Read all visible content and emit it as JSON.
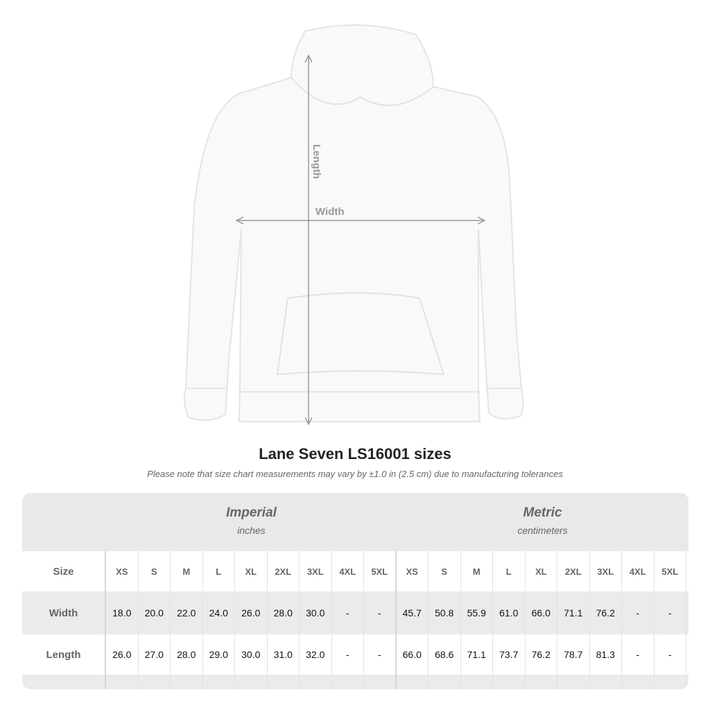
{
  "diagram": {
    "length_label": "Length",
    "width_label": "Width"
  },
  "title": "Lane Seven LS16001 sizes",
  "note": "Please note that size chart measurements may vary by ±1.0 in (2.5 cm) due to manufacturing tolerances",
  "table": {
    "imperial": {
      "label": "Imperial",
      "unit": "inches"
    },
    "metric": {
      "label": "Metric",
      "unit": "centimeters"
    },
    "size_label": "Size",
    "sizes": [
      "XS",
      "S",
      "M",
      "L",
      "XL",
      "2XL",
      "3XL",
      "4XL",
      "5XL"
    ],
    "rows": [
      {
        "label": "Width",
        "imperial": [
          "18.0",
          "20.0",
          "22.0",
          "24.0",
          "26.0",
          "28.0",
          "30.0",
          "-",
          "-"
        ],
        "metric": [
          "45.7",
          "50.8",
          "55.9",
          "61.0",
          "66.0",
          "71.1",
          "76.2",
          "-",
          "-"
        ]
      },
      {
        "label": "Length",
        "imperial": [
          "26.0",
          "27.0",
          "28.0",
          "29.0",
          "30.0",
          "31.0",
          "32.0",
          "-",
          "-"
        ],
        "metric": [
          "66.0",
          "68.6",
          "71.1",
          "73.7",
          "76.2",
          "78.7",
          "81.3",
          "-",
          "-"
        ]
      }
    ]
  }
}
